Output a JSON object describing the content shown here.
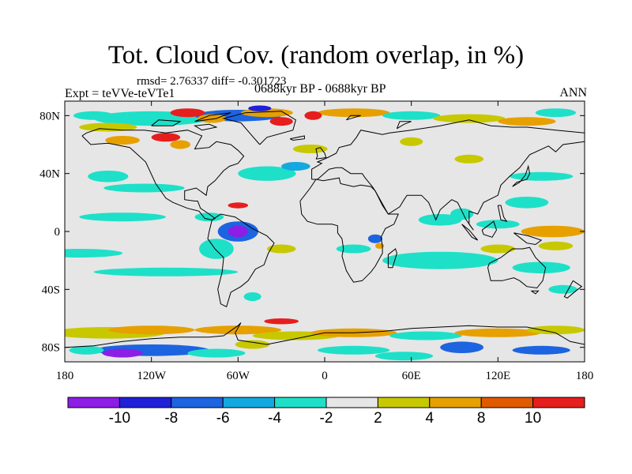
{
  "title": "Tot. Cloud Cov. (random overlap, in %)",
  "stats": "rmsd= 2.76337 diff= -0.301723",
  "experiment": "Expt = teVVe-teVTe1",
  "period": "0688kyr BP - 0688kyr BP",
  "season": "ANN",
  "map": {
    "x_ticks": [
      {
        "lon": -180,
        "label": "180"
      },
      {
        "lon": -120,
        "label": "120W"
      },
      {
        "lon": -60,
        "label": "60W"
      },
      {
        "lon": 0,
        "label": "0"
      },
      {
        "lon": 60,
        "label": "60E"
      },
      {
        "lon": 120,
        "label": "120E"
      },
      {
        "lon": 180,
        "label": "180"
      }
    ],
    "y_ticks": [
      {
        "lat": 80,
        "label": "80N"
      },
      {
        "lat": 40,
        "label": "40N"
      },
      {
        "lat": 0,
        "label": "0"
      },
      {
        "lat": -40,
        "label": "40S"
      },
      {
        "lat": -80,
        "label": "80S"
      }
    ],
    "lon_range": [
      -180,
      180
    ],
    "lat_range": [
      -90,
      90
    ],
    "background_color": "#e6e6e6",
    "coastline_color": "#000000"
  },
  "colorbar": {
    "boundaries": [
      -10,
      -8,
      -6,
      -4,
      -2,
      2,
      4,
      8,
      10
    ],
    "boundary_labels": [
      "-10",
      "-8",
      "-6",
      "-4",
      "-2",
      "2",
      "4",
      "8",
      "10"
    ],
    "colors": [
      "#8c1ee6",
      "#2020d8",
      "#1c64e0",
      "#14a8e0",
      "#1ee0c8",
      "#e6e6e6",
      "#c8c800",
      "#e6a000",
      "#e05a00",
      "#e61e1e"
    ]
  }
}
